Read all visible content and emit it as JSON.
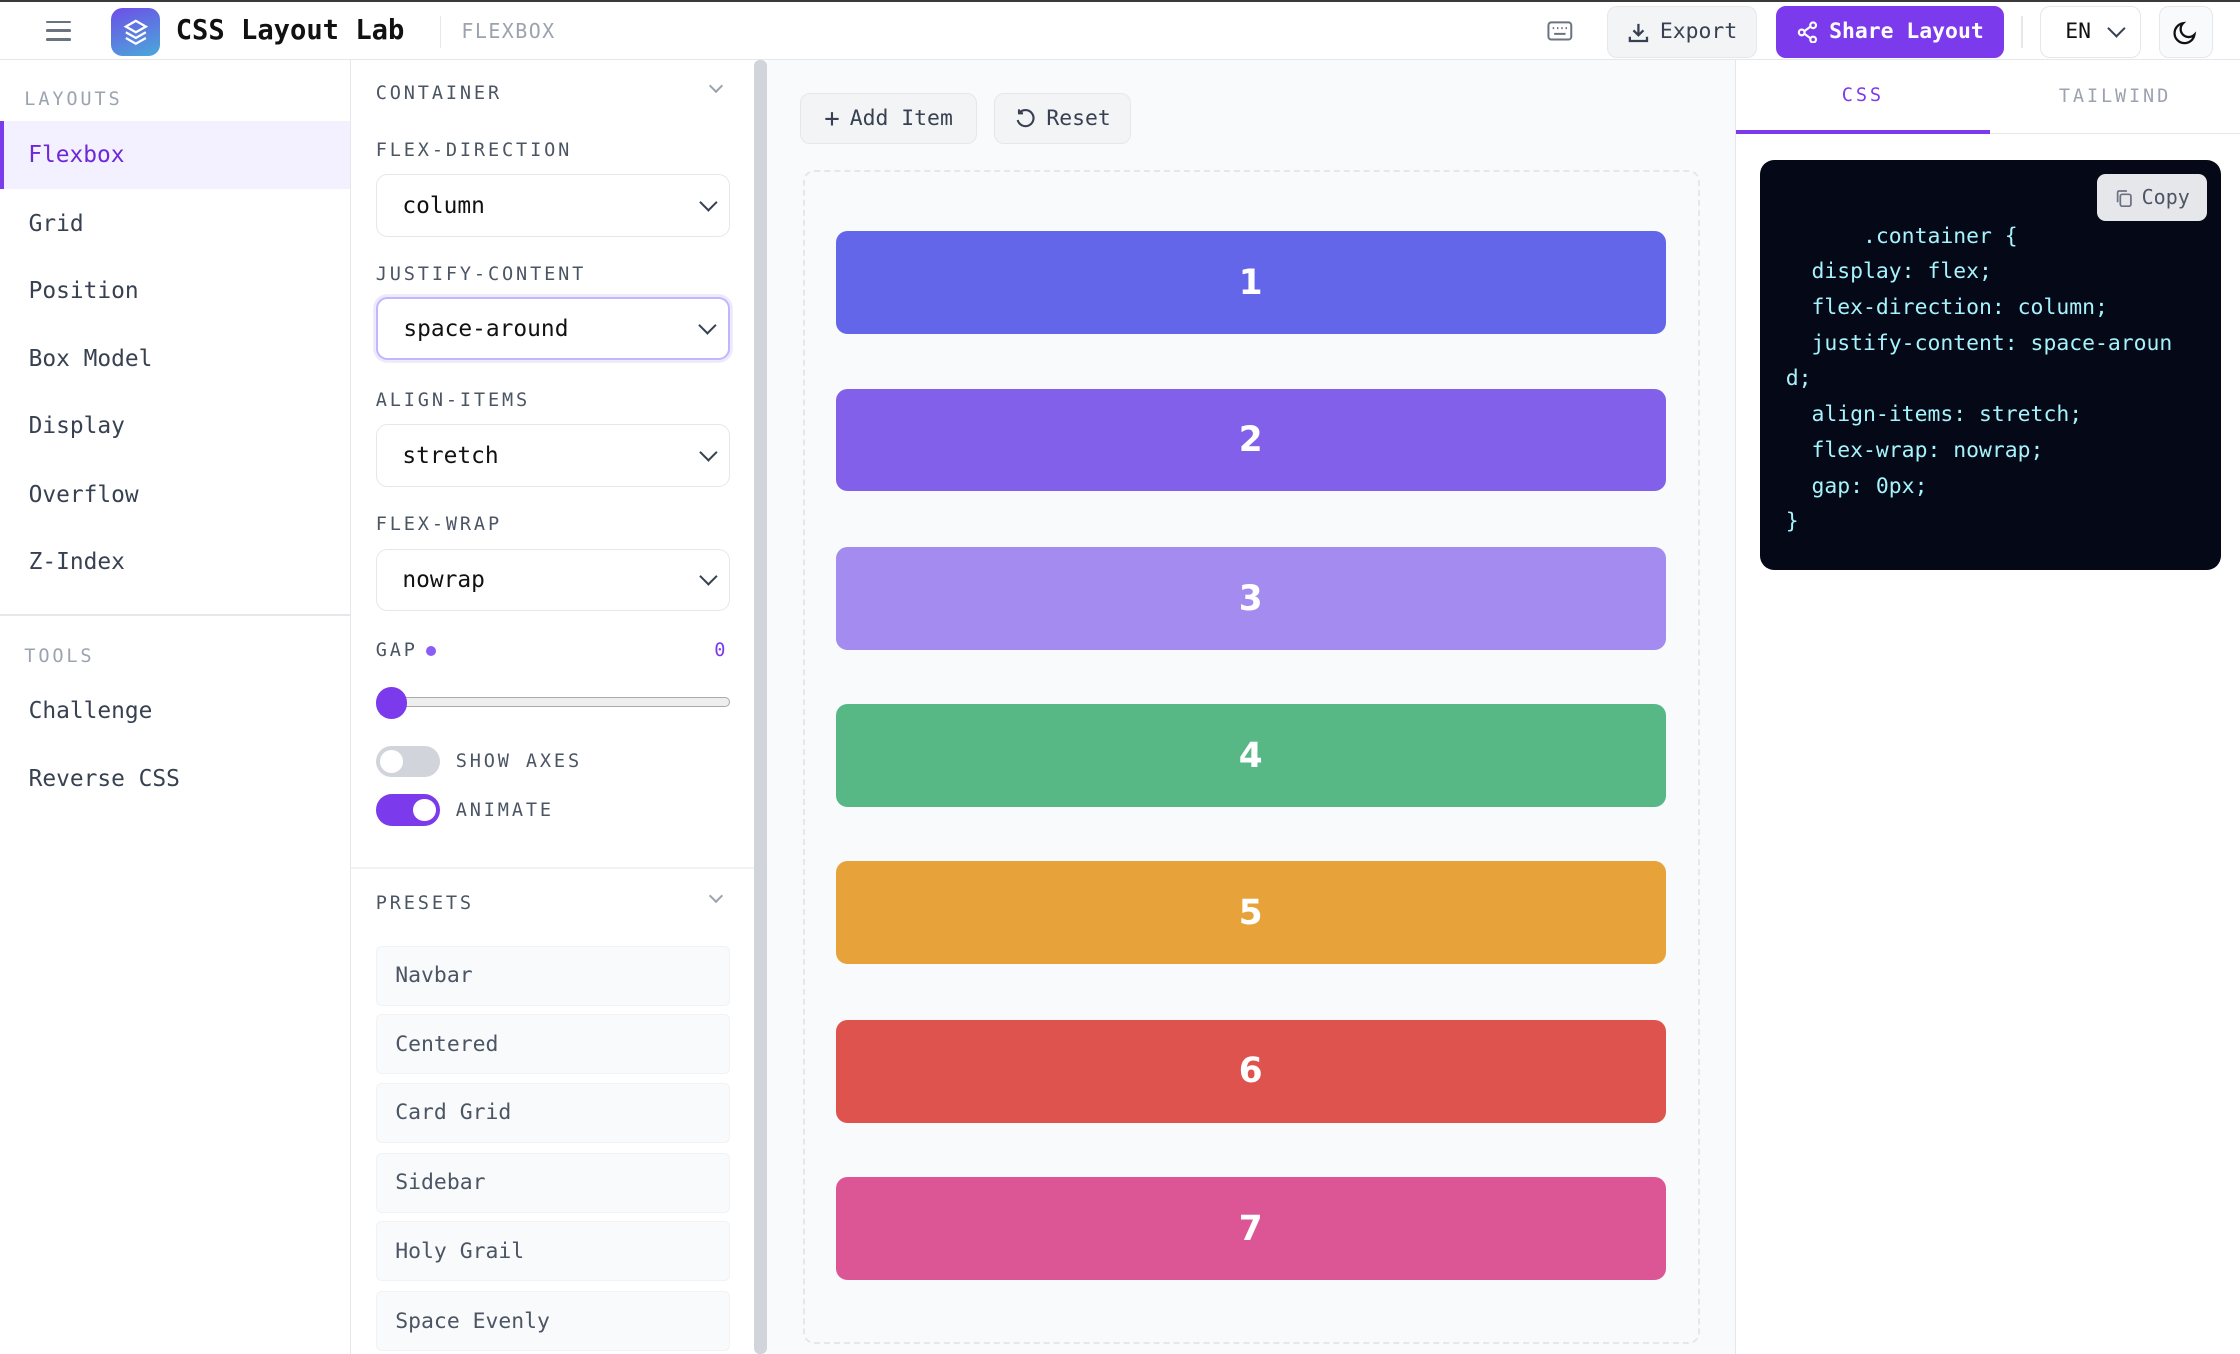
{
  "header": {
    "app_title": "CSS Layout Lab",
    "breadcrumb": "FLEXBOX",
    "export_label": "Export",
    "share_label": "Share Layout",
    "language": "EN"
  },
  "sidebar": {
    "layouts_heading": "LAYOUTS",
    "layouts": [
      {
        "label": "Flexbox"
      },
      {
        "label": "Grid"
      },
      {
        "label": "Position"
      },
      {
        "label": "Box Model"
      },
      {
        "label": "Display"
      },
      {
        "label": "Overflow"
      },
      {
        "label": "Z-Index"
      }
    ],
    "tools_heading": "TOOLS",
    "tools": [
      {
        "label": "Challenge"
      },
      {
        "label": "Reverse CSS"
      }
    ]
  },
  "controls": {
    "container_heading": "CONTAINER",
    "flex_direction_label": "FLEX-DIRECTION",
    "flex_direction": "column",
    "justify_content_label": "JUSTIFY-CONTENT",
    "justify_content": "space-around",
    "align_items_label": "ALIGN-ITEMS",
    "align_items": "stretch",
    "flex_wrap_label": "FLEX-WRAP",
    "flex_wrap": "nowrap",
    "gap_label": "GAP",
    "gap_value": "0",
    "show_axes_label": "SHOW AXES",
    "show_axes": false,
    "animate_label": "ANIMATE",
    "animate": true,
    "presets_heading": "PRESETS",
    "presets": [
      {
        "label": "Navbar"
      },
      {
        "label": "Centered"
      },
      {
        "label": "Card Grid"
      },
      {
        "label": "Sidebar"
      },
      {
        "label": "Holy Grail"
      },
      {
        "label": "Space Evenly"
      }
    ]
  },
  "main": {
    "add_item_label": "Add Item",
    "reset_label": "Reset",
    "items": [
      {
        "label": "1",
        "color": "#6366e8"
      },
      {
        "label": "2",
        "color": "#8360ea"
      },
      {
        "label": "3",
        "color": "#a48bf0"
      },
      {
        "label": "4",
        "color": "#57b886"
      },
      {
        "label": "5",
        "color": "#e7a33a"
      },
      {
        "label": "6",
        "color": "#df534e"
      },
      {
        "label": "7",
        "color": "#dc5696"
      }
    ]
  },
  "output": {
    "tabs": [
      {
        "label": "CSS"
      },
      {
        "label": "TAILWIND"
      }
    ],
    "code": ".container {\n  display: flex;\n  flex-direction: column;\n  justify-content: space-around;\n  align-items: stretch;\n  flex-wrap: nowrap;\n  gap: 0px;\n}",
    "copy_label": "Copy"
  },
  "colors": {
    "accent": "#7c3aed"
  }
}
